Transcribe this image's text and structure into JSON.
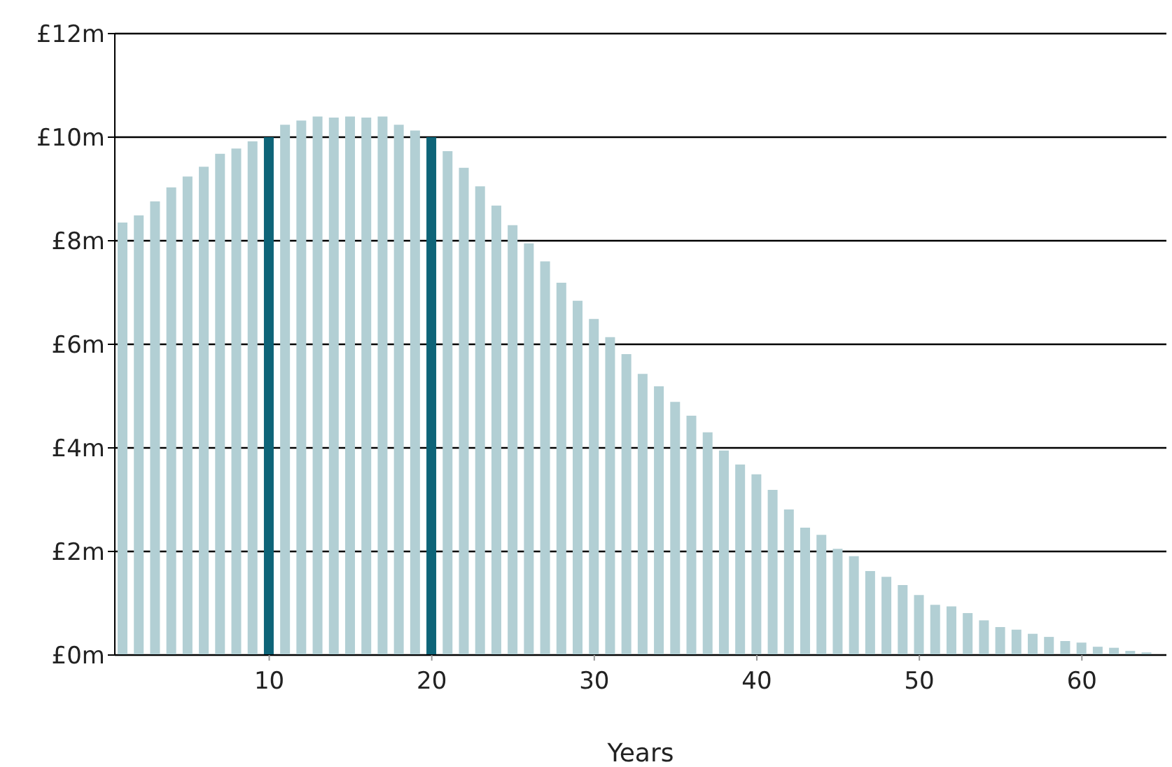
{
  "chart_data": {
    "type": "bar",
    "xlabel": "Years",
    "x": [
      1,
      2,
      3,
      4,
      5,
      6,
      7,
      8,
      9,
      10,
      11,
      12,
      13,
      14,
      15,
      16,
      17,
      18,
      19,
      20,
      21,
      22,
      23,
      24,
      25,
      26,
      27,
      28,
      29,
      30,
      31,
      32,
      33,
      34,
      35,
      36,
      37,
      38,
      39,
      40,
      41,
      42,
      43,
      44,
      45,
      46,
      47,
      48,
      49,
      50,
      51,
      52,
      53,
      54,
      55,
      56,
      57,
      58,
      59,
      60,
      61,
      62,
      63,
      64
    ],
    "values": [
      8.35,
      8.49,
      8.76,
      9.03,
      9.24,
      9.43,
      9.68,
      9.78,
      9.92,
      10.0,
      10.24,
      10.32,
      10.4,
      10.38,
      10.4,
      10.38,
      10.4,
      10.24,
      10.13,
      10.0,
      9.73,
      9.41,
      9.05,
      8.68,
      8.3,
      7.95,
      7.6,
      7.19,
      6.84,
      6.49,
      6.14,
      5.81,
      5.43,
      5.19,
      4.89,
      4.62,
      4.3,
      3.95,
      3.68,
      3.49,
      3.19,
      2.81,
      2.46,
      2.32,
      2.05,
      1.91,
      1.62,
      1.51,
      1.35,
      1.16,
      0.97,
      0.94,
      0.81,
      0.67,
      0.54,
      0.49,
      0.41,
      0.35,
      0.27,
      0.24,
      0.16,
      0.14,
      0.08,
      0.05
    ],
    "colors": [
      "#b2cfd4",
      "#b2cfd4",
      "#b2cfd4",
      "#b2cfd4",
      "#b2cfd4",
      "#b2cfd4",
      "#b2cfd4",
      "#b2cfd4",
      "#b2cfd4",
      "#0e6478",
      "#b2cfd4",
      "#b2cfd4",
      "#b2cfd4",
      "#b2cfd4",
      "#b2cfd4",
      "#b2cfd4",
      "#b2cfd4",
      "#b2cfd4",
      "#b2cfd4",
      "#0e6478",
      "#b2cfd4",
      "#b2cfd4",
      "#b2cfd4",
      "#b2cfd4",
      "#b2cfd4",
      "#b2cfd4",
      "#b2cfd4",
      "#b2cfd4",
      "#b2cfd4",
      "#b2cfd4",
      "#b2cfd4",
      "#b2cfd4",
      "#b2cfd4",
      "#b2cfd4",
      "#b2cfd4",
      "#b2cfd4",
      "#b2cfd4",
      "#b2cfd4",
      "#b2cfd4",
      "#b2cfd4",
      "#b2cfd4",
      "#b2cfd4",
      "#b2cfd4",
      "#b2cfd4",
      "#b2cfd4",
      "#b2cfd4",
      "#b2cfd4",
      "#b2cfd4",
      "#b2cfd4",
      "#b2cfd4",
      "#b2cfd4",
      "#b2cfd4",
      "#b2cfd4",
      "#b2cfd4",
      "#b2cfd4",
      "#b2cfd4",
      "#b2cfd4",
      "#b2cfd4",
      "#b2cfd4",
      "#b2cfd4",
      "#b2cfd4",
      "#b2cfd4",
      "#b2cfd4",
      "#b2cfd4"
    ],
    "xlim": [
      0.5,
      65.2
    ],
    "xticks": [
      10,
      20,
      30,
      40,
      50,
      60
    ],
    "ylim": [
      0,
      12
    ],
    "yticks": [
      {
        "value": 0,
        "label": "£0m"
      },
      {
        "value": 2,
        "label": "£2m"
      },
      {
        "value": 4,
        "label": "£4m"
      },
      {
        "value": 6,
        "label": "£6m"
      },
      {
        "value": 8,
        "label": "£8m"
      },
      {
        "value": 10,
        "label": "£10m"
      },
      {
        "value": 12,
        "label": "£12m"
      }
    ],
    "grid": "y",
    "legend": false
  }
}
